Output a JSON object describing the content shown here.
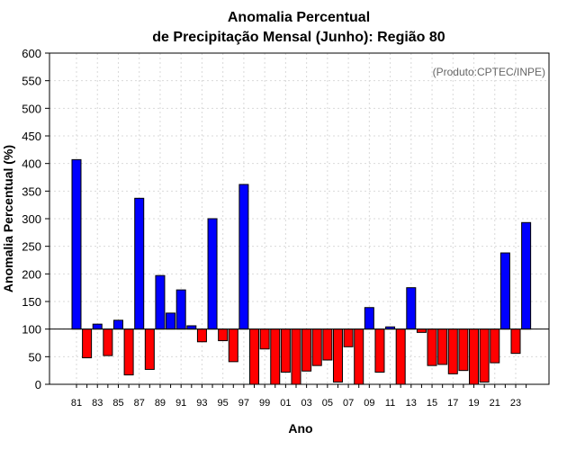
{
  "chart_data": {
    "type": "bar",
    "title_line1": "Anomalia Percentual",
    "title_line2": "de Precipitação Mensal (Junho): Região 80",
    "xlabel": "Ano",
    "ylabel": "Anomalia Percentual (%)",
    "credit": "(Produto:CPTEC/INPE)",
    "ylim": [
      0,
      600
    ],
    "yticks": [
      0,
      50,
      100,
      150,
      200,
      250,
      300,
      350,
      400,
      450,
      500,
      550,
      600
    ],
    "baseline": 100,
    "colors": {
      "above": "#0000ff",
      "below": "#ff0000"
    },
    "categories": [
      "81",
      "82",
      "83",
      "84",
      "85",
      "86",
      "87",
      "88",
      "89",
      "90",
      "91",
      "92",
      "93",
      "94",
      "95",
      "96",
      "97",
      "98",
      "99",
      "00",
      "01",
      "02",
      "03",
      "04",
      "05",
      "06",
      "07",
      "08",
      "09",
      "10",
      "11",
      "12",
      "13",
      "14",
      "15",
      "16",
      "17",
      "18",
      "19",
      "20",
      "21",
      "22",
      "23",
      "24"
    ],
    "tick_labels": [
      "81",
      "83",
      "85",
      "87",
      "89",
      "91",
      "93",
      "95",
      "97",
      "99",
      "01",
      "03",
      "05",
      "07",
      "09",
      "11",
      "13",
      "15",
      "17",
      "19",
      "21",
      "23"
    ],
    "values": [
      407,
      48,
      109,
      52,
      116,
      17,
      337,
      27,
      197,
      129,
      171,
      106,
      77,
      300,
      79,
      41,
      362,
      0,
      64,
      0,
      22,
      0,
      24,
      34,
      44,
      4,
      68,
      0,
      139,
      22,
      104,
      0,
      175,
      94,
      34,
      36,
      19,
      25,
      0,
      4,
      39,
      238,
      56,
      293
    ]
  }
}
